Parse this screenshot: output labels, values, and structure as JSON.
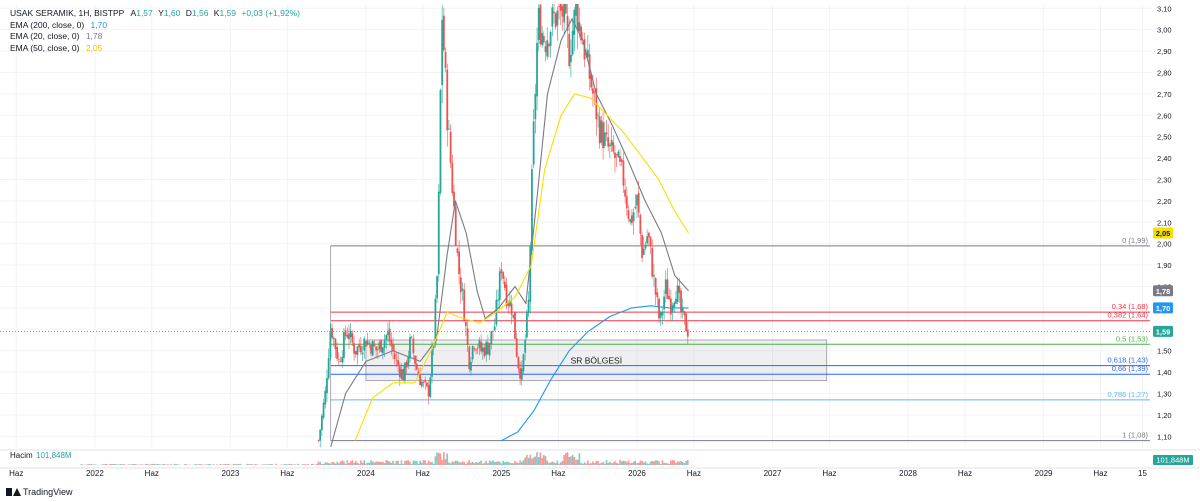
{
  "legend": {
    "symbol_line": "USAK SERAMIK, 1H, BISTPP",
    "ohlc": [
      {
        "k": "A",
        "v": "1,57"
      },
      {
        "k": "Y",
        "v": "1,60"
      },
      {
        "k": "D",
        "v": "1,56"
      },
      {
        "k": "K",
        "v": "1,59"
      }
    ],
    "change": "+0,03 (+1,92%)",
    "emas": [
      {
        "label": "EMA (200, close, 0)",
        "value": "1,70",
        "color": "#2196f3"
      },
      {
        "label": "EMA (20, close, 0)",
        "value": "1,78",
        "color": "#787b86"
      },
      {
        "label": "EMA (50, close, 0)",
        "value": "2,05",
        "color": "#f7e000"
      }
    ]
  },
  "brand": "TradingView",
  "chart_data": {
    "type": "candlestick",
    "y_axis": {
      "min": 1.05,
      "max": 3.12,
      "position": "right",
      "ticks": [
        {
          "v": 1.1,
          "label": "1,10"
        },
        {
          "v": 1.2,
          "label": "1,20"
        },
        {
          "v": 1.3,
          "label": "1,30"
        },
        {
          "v": 1.4,
          "label": "1,40"
        },
        {
          "v": 1.5,
          "label": "1,50"
        },
        {
          "v": 1.6,
          "label": "1,60"
        },
        {
          "v": 1.7,
          "label": "1,70"
        },
        {
          "v": 1.8,
          "label": "1,80"
        },
        {
          "v": 1.9,
          "label": "1,90"
        },
        {
          "v": 2.0,
          "label": "2,00"
        },
        {
          "v": 2.1,
          "label": "2,10"
        },
        {
          "v": 2.2,
          "label": "2,20"
        },
        {
          "v": 2.3,
          "label": "2,30"
        },
        {
          "v": 2.4,
          "label": "2,40"
        },
        {
          "v": 2.5,
          "label": "2,50"
        },
        {
          "v": 2.6,
          "label": "2,60"
        },
        {
          "v": 2.7,
          "label": "2,70"
        },
        {
          "v": 2.8,
          "label": "2,80"
        },
        {
          "v": 2.9,
          "label": "2,90"
        },
        {
          "v": 3.0,
          "label": "3,00"
        },
        {
          "v": 3.1,
          "label": "3,10"
        }
      ]
    },
    "x_axis": {
      "min": 2021.3,
      "max": 2029.8,
      "ticks": [
        {
          "t": 2021.42,
          "label": "Haz"
        },
        {
          "t": 2022.0,
          "label": "2022"
        },
        {
          "t": 2022.42,
          "label": "Haz"
        },
        {
          "t": 2023.0,
          "label": "2023"
        },
        {
          "t": 2023.42,
          "label": "Haz"
        },
        {
          "t": 2024.0,
          "label": "2024"
        },
        {
          "t": 2024.42,
          "label": "Haz"
        },
        {
          "t": 2025.0,
          "label": "2025"
        },
        {
          "t": 2025.42,
          "label": "Haz"
        },
        {
          "t": 2026.0,
          "label": "2026"
        },
        {
          "t": 2026.42,
          "label": "Haz"
        },
        {
          "t": 2027.0,
          "label": "2027"
        },
        {
          "t": 2027.42,
          "label": "Haz"
        },
        {
          "t": 2028.0,
          "label": "2028"
        },
        {
          "t": 2028.42,
          "label": "Haz"
        },
        {
          "t": 2029.0,
          "label": "2029"
        },
        {
          "t": 2029.42,
          "label": "Haz"
        },
        {
          "t": 2029.73,
          "label": "15"
        }
      ]
    },
    "price_path": [
      [
        2023.65,
        1.08
      ],
      [
        2023.7,
        1.3
      ],
      [
        2023.74,
        1.62
      ],
      [
        2023.8,
        1.45
      ],
      [
        2023.86,
        1.6
      ],
      [
        2023.92,
        1.5
      ],
      [
        2024.0,
        1.55
      ],
      [
        2024.08,
        1.5
      ],
      [
        2024.16,
        1.58
      ],
      [
        2024.22,
        1.45
      ],
      [
        2024.28,
        1.38
      ],
      [
        2024.33,
        1.55
      ],
      [
        2024.38,
        1.4
      ],
      [
        2024.42,
        1.34
      ],
      [
        2024.46,
        1.3
      ],
      [
        2024.5,
        1.55
      ],
      [
        2024.53,
        1.9
      ],
      [
        2024.56,
        3.1
      ],
      [
        2024.6,
        2.6
      ],
      [
        2024.64,
        2.25
      ],
      [
        2024.68,
        1.9
      ],
      [
        2024.72,
        1.72
      ],
      [
        2024.76,
        1.45
      ],
      [
        2024.8,
        1.55
      ],
      [
        2024.85,
        1.5
      ],
      [
        2024.9,
        1.52
      ],
      [
        2024.95,
        1.62
      ],
      [
        2025.0,
        1.9
      ],
      [
        2025.04,
        1.75
      ],
      [
        2025.08,
        1.7
      ],
      [
        2025.12,
        1.45
      ],
      [
        2025.15,
        1.38
      ],
      [
        2025.2,
        1.72
      ],
      [
        2025.23,
        2.4
      ],
      [
        2025.27,
        3.05
      ],
      [
        2025.32,
        2.95
      ],
      [
        2025.38,
        3.05
      ],
      [
        2025.45,
        3.08
      ],
      [
        2025.5,
        2.9
      ],
      [
        2025.55,
        3.1
      ],
      [
        2025.6,
        2.95
      ],
      [
        2025.66,
        2.75
      ],
      [
        2025.72,
        2.55
      ],
      [
        2025.78,
        2.45
      ],
      [
        2025.84,
        2.4
      ],
      [
        2025.9,
        2.3
      ],
      [
        2025.95,
        2.1
      ],
      [
        2026.0,
        2.2
      ],
      [
        2026.04,
        1.95
      ],
      [
        2026.08,
        2.05
      ],
      [
        2026.12,
        1.85
      ],
      [
        2026.17,
        1.62
      ],
      [
        2026.21,
        1.8
      ],
      [
        2026.25,
        1.72
      ],
      [
        2026.29,
        1.8
      ],
      [
        2026.33,
        1.66
      ],
      [
        2026.38,
        1.59
      ]
    ],
    "ema20_path": [
      [
        2023.74,
        1.05
      ],
      [
        2023.85,
        1.3
      ],
      [
        2024.0,
        1.45
      ],
      [
        2024.2,
        1.5
      ],
      [
        2024.4,
        1.45
      ],
      [
        2024.52,
        1.55
      ],
      [
        2024.6,
        1.95
      ],
      [
        2024.66,
        2.2
      ],
      [
        2024.74,
        2.05
      ],
      [
        2024.82,
        1.78
      ],
      [
        2024.88,
        1.65
      ],
      [
        2024.98,
        1.7
      ],
      [
        2025.1,
        1.8
      ],
      [
        2025.18,
        1.72
      ],
      [
        2025.26,
        2.2
      ],
      [
        2025.34,
        2.7
      ],
      [
        2025.44,
        2.95
      ],
      [
        2025.52,
        3.05
      ],
      [
        2025.6,
        2.95
      ],
      [
        2025.7,
        2.7
      ],
      [
        2025.82,
        2.55
      ],
      [
        2025.94,
        2.38
      ],
      [
        2026.06,
        2.2
      ],
      [
        2026.18,
        2.05
      ],
      [
        2026.28,
        1.85
      ],
      [
        2026.38,
        1.78
      ]
    ],
    "ema50_path": [
      [
        2023.92,
        1.08
      ],
      [
        2024.05,
        1.28
      ],
      [
        2024.2,
        1.35
      ],
      [
        2024.36,
        1.35
      ],
      [
        2024.48,
        1.5
      ],
      [
        2024.6,
        1.68
      ],
      [
        2024.72,
        1.65
      ],
      [
        2024.84,
        1.63
      ],
      [
        2024.96,
        1.68
      ],
      [
        2025.1,
        1.75
      ],
      [
        2025.22,
        1.9
      ],
      [
        2025.32,
        2.35
      ],
      [
        2025.44,
        2.6
      ],
      [
        2025.54,
        2.7
      ],
      [
        2025.66,
        2.68
      ],
      [
        2025.78,
        2.6
      ],
      [
        2025.9,
        2.52
      ],
      [
        2026.02,
        2.42
      ],
      [
        2026.16,
        2.3
      ],
      [
        2026.28,
        2.15
      ],
      [
        2026.38,
        2.05
      ]
    ],
    "ema200_path": [
      [
        2025.0,
        1.08
      ],
      [
        2025.12,
        1.12
      ],
      [
        2025.24,
        1.22
      ],
      [
        2025.36,
        1.36
      ],
      [
        2025.5,
        1.5
      ],
      [
        2025.64,
        1.59
      ],
      [
        2025.8,
        1.66
      ],
      [
        2025.96,
        1.7
      ],
      [
        2026.1,
        1.71
      ],
      [
        2026.24,
        1.7
      ],
      [
        2026.38,
        1.7
      ]
    ],
    "fibonacci": {
      "t_start": 2023.74,
      "t_end": 2029.85,
      "levels": [
        {
          "ratio": "0",
          "price": 1.99,
          "label": "0 (1,99)",
          "color": "#787b86"
        },
        {
          "ratio": "0,34",
          "price": 1.68,
          "label": "0,34 (1,68)",
          "color": "#f23645"
        },
        {
          "ratio": "0,382",
          "price": 1.64,
          "label": "0,382 (1,64)",
          "color": "#f23645"
        },
        {
          "ratio": "0,5",
          "price": 1.53,
          "label": "0,5 (1,53)",
          "color": "#4caf50"
        },
        {
          "ratio": "0,618",
          "price": 1.43,
          "label": "0,618 (1,43)",
          "color": "#2962ff"
        },
        {
          "ratio": "0,66",
          "price": 1.39,
          "label": "0,66 (1,39)",
          "color": "#2962ff"
        },
        {
          "ratio": "0,786",
          "price": 1.27,
          "label": "0,786 (1,27)",
          "color": "#64b5f6"
        },
        {
          "ratio": "1",
          "price": 1.08,
          "label": "1 (1,08)",
          "color": "#787b86"
        }
      ]
    },
    "zone": {
      "label": "SR BÖLGESİ",
      "t_start": 2024.0,
      "t_end": 2027.4,
      "price_top": 1.55,
      "price_bottom": 1.36
    },
    "last_price": {
      "price": 1.59,
      "label": "1,59",
      "color": "#26a69a"
    },
    "price_badges": [
      {
        "price": 2.05,
        "label": "2,05",
        "bg": "#f7e000",
        "fg": "#131722"
      },
      {
        "price": 1.78,
        "label": "1,78",
        "bg": "#787b86",
        "fg": "#ffffff"
      },
      {
        "price": 1.7,
        "label": "1,70",
        "bg": "#2196f3",
        "fg": "#ffffff"
      },
      {
        "price": 1.59,
        "label": "1,59",
        "bg": "#26a69a",
        "fg": "#ffffff"
      }
    ],
    "volume": {
      "label": "Hacim",
      "value": "101,848M",
      "badge": "101,848M"
    }
  }
}
